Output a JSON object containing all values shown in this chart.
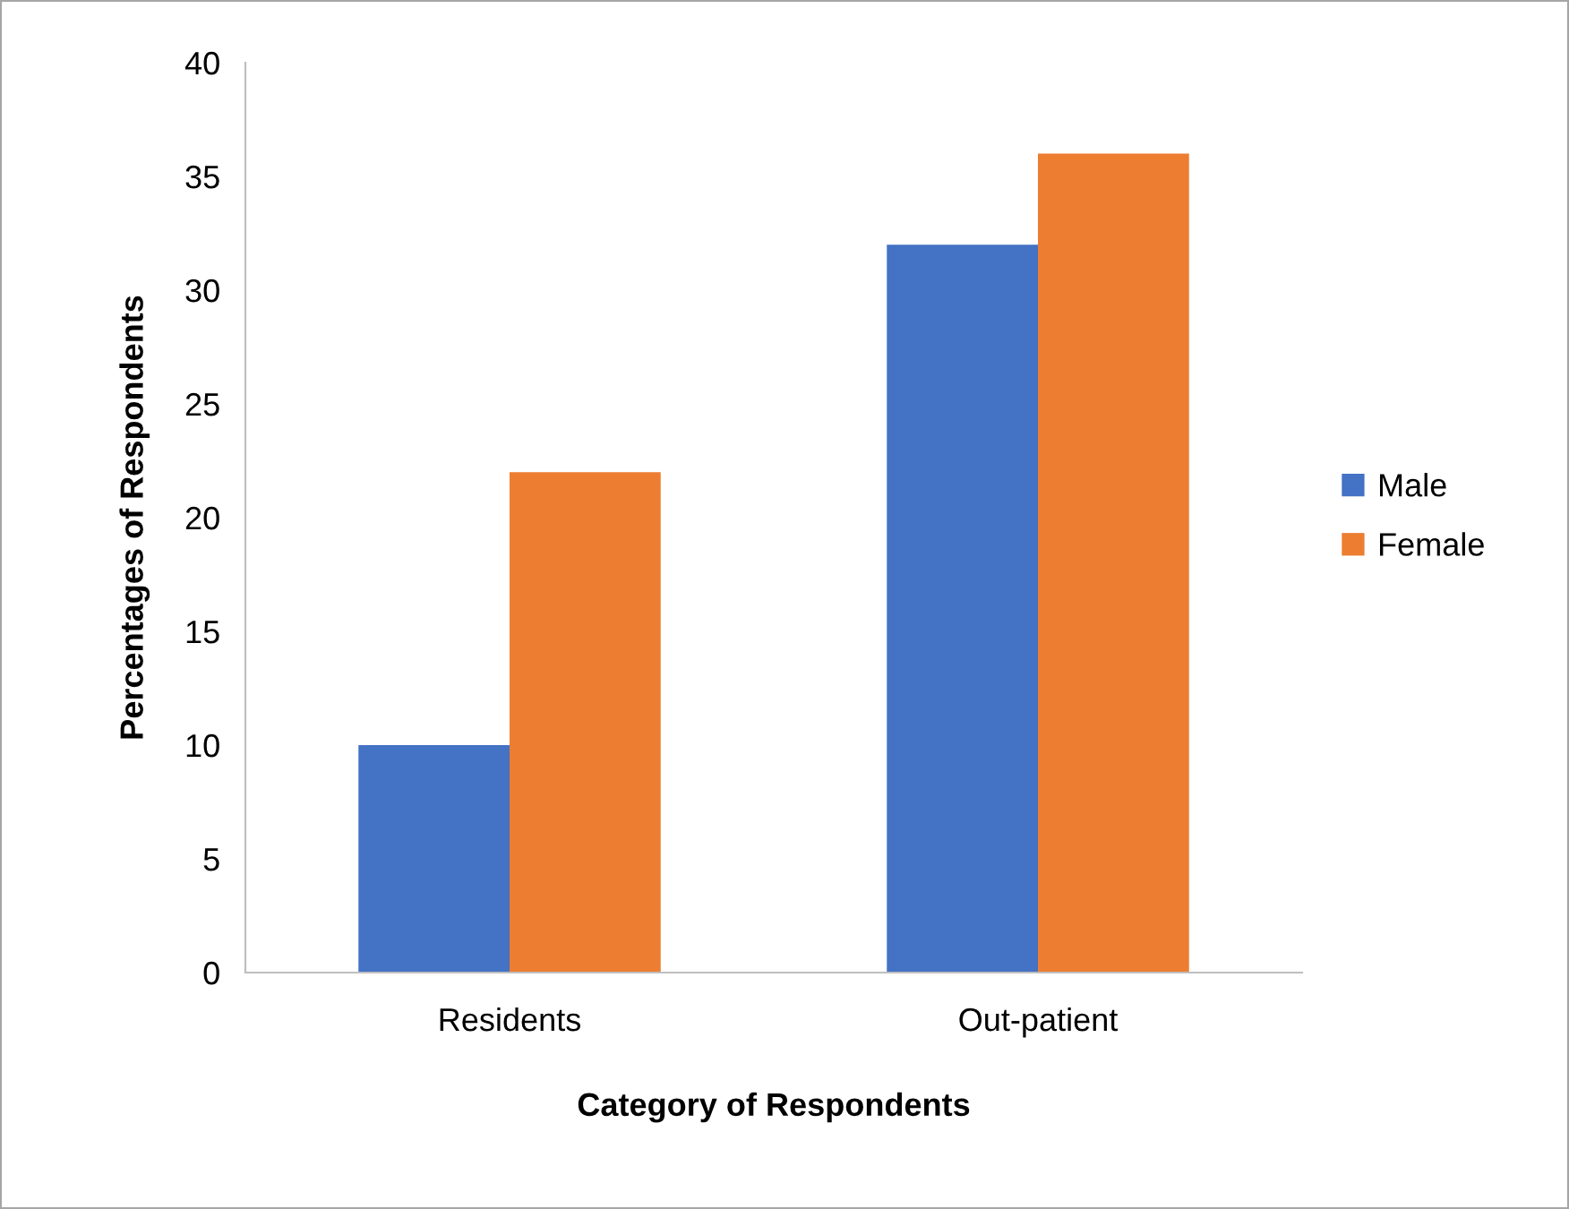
{
  "chart_data": {
    "type": "bar",
    "xlabel": "Category of Respondents",
    "ylabel": "Percentages of Respondents",
    "categories": [
      "Residents",
      "Out-patient"
    ],
    "series": [
      {
        "name": "Male",
        "color": "#4472c4",
        "values": [
          10,
          32
        ]
      },
      {
        "name": "Female",
        "color": "#ed7d31",
        "values": [
          22,
          36
        ]
      }
    ],
    "ylim": [
      0,
      40
    ],
    "yticks": [
      0,
      5,
      10,
      15,
      20,
      25,
      30,
      35,
      40
    ],
    "grid": false,
    "legend": "right"
  }
}
